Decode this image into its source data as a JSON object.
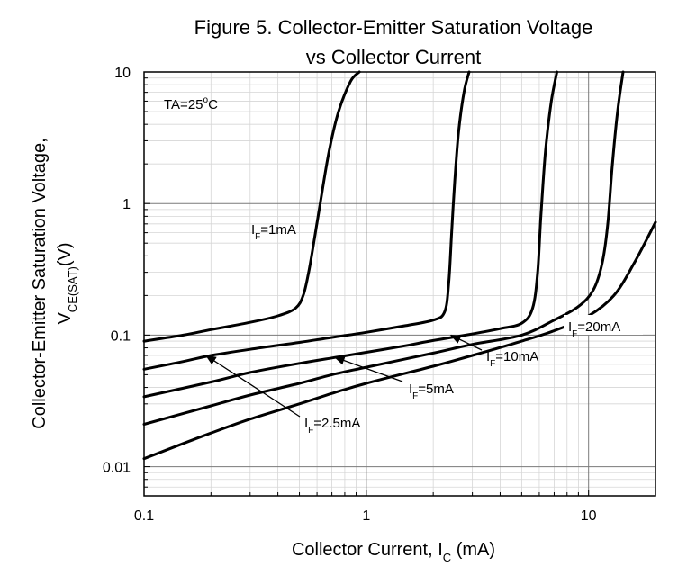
{
  "chart_data": {
    "type": "line",
    "title_line1": "Figure 5. Collector-Emitter Saturation Voltage",
    "title_line2": "vs Collector Current",
    "xlabel": {
      "main": "Collector Current, I",
      "sub": "C",
      "tail": " (mA)"
    },
    "ylabel": {
      "line1": "Collector-Emitter Saturation Voltage,",
      "line2_main": "V",
      "line2_sub": "CE(SAT)",
      "line2_tail": "(V)"
    },
    "x_scale": "log",
    "y_scale": "log",
    "xlim": [
      0.1,
      20
    ],
    "ylim": [
      0.006,
      10
    ],
    "x_ticks": [
      {
        "value": 0.1,
        "label": "0.1"
      },
      {
        "value": 1,
        "label": "1"
      },
      {
        "value": 10,
        "label": "10"
      }
    ],
    "y_ticks": [
      {
        "value": 0.01,
        "label": "0.01"
      },
      {
        "value": 0.1,
        "label": "0.1"
      },
      {
        "value": 1,
        "label": "1"
      },
      {
        "value": 10,
        "label": "10"
      }
    ],
    "grid": true,
    "condition_label": {
      "main": "TA=25",
      "sup": "o",
      "tail": "C"
    },
    "series": [
      {
        "name": "IF=1mA",
        "points": [
          [
            0.1,
            0.09
          ],
          [
            0.15,
            0.1
          ],
          [
            0.2,
            0.11
          ],
          [
            0.3,
            0.125
          ],
          [
            0.4,
            0.14
          ],
          [
            0.48,
            0.16
          ],
          [
            0.52,
            0.2
          ],
          [
            0.55,
            0.3
          ],
          [
            0.58,
            0.5
          ],
          [
            0.62,
            1.0
          ],
          [
            0.68,
            2.5
          ],
          [
            0.75,
            5
          ],
          [
            0.85,
            8.5
          ],
          [
            0.93,
            10
          ]
        ]
      },
      {
        "name": "IF=2.5mA",
        "points": [
          [
            0.1,
            0.055
          ],
          [
            0.15,
            0.063
          ],
          [
            0.2,
            0.07
          ],
          [
            0.3,
            0.078
          ],
          [
            0.5,
            0.088
          ],
          [
            0.7,
            0.096
          ],
          [
            1,
            0.105
          ],
          [
            1.5,
            0.118
          ],
          [
            2,
            0.13
          ],
          [
            2.25,
            0.15
          ],
          [
            2.35,
            0.25
          ],
          [
            2.42,
            0.6
          ],
          [
            2.5,
            1.5
          ],
          [
            2.6,
            3.5
          ],
          [
            2.75,
            7
          ],
          [
            2.9,
            10
          ]
        ]
      },
      {
        "name": "IF=5mA",
        "points": [
          [
            0.1,
            0.034
          ],
          [
            0.2,
            0.044
          ],
          [
            0.3,
            0.052
          ],
          [
            0.5,
            0.061
          ],
          [
            0.7,
            0.067
          ],
          [
            1,
            0.074
          ],
          [
            1.5,
            0.083
          ],
          [
            2,
            0.091
          ],
          [
            3,
            0.102
          ],
          [
            4,
            0.112
          ],
          [
            5,
            0.123
          ],
          [
            5.6,
            0.16
          ],
          [
            5.9,
            0.3
          ],
          [
            6.1,
            0.8
          ],
          [
            6.4,
            2.5
          ],
          [
            6.8,
            6
          ],
          [
            7.2,
            10
          ]
        ]
      },
      {
        "name": "IF=10mA",
        "points": [
          [
            0.1,
            0.021
          ],
          [
            0.2,
            0.029
          ],
          [
            0.3,
            0.035
          ],
          [
            0.5,
            0.043
          ],
          [
            0.7,
            0.05
          ],
          [
            1,
            0.057
          ],
          [
            2,
            0.073
          ],
          [
            3,
            0.085
          ],
          [
            5,
            0.1
          ],
          [
            7,
            0.13
          ],
          [
            9,
            0.165
          ],
          [
            10.5,
            0.22
          ],
          [
            11.5,
            0.35
          ],
          [
            12.2,
            0.7
          ],
          [
            12.8,
            2
          ],
          [
            13.5,
            5
          ],
          [
            14.3,
            10
          ]
        ]
      },
      {
        "name": "IF=20mA",
        "points": [
          [
            0.1,
            0.0115
          ],
          [
            0.15,
            0.015
          ],
          [
            0.2,
            0.018
          ],
          [
            0.3,
            0.023
          ],
          [
            0.5,
            0.03
          ],
          [
            0.7,
            0.036
          ],
          [
            1,
            0.043
          ],
          [
            2,
            0.058
          ],
          [
            3,
            0.07
          ],
          [
            5,
            0.09
          ],
          [
            7,
            0.108
          ],
          [
            10,
            0.14
          ],
          [
            13,
            0.2
          ],
          [
            16,
            0.35
          ],
          [
            20,
            0.72
          ]
        ]
      }
    ],
    "annotations": [
      {
        "main": "I",
        "sub": "F",
        "tail": "=1mA"
      },
      {
        "main": "I",
        "sub": "F",
        "tail": "=2.5mA"
      },
      {
        "main": "I",
        "sub": "F",
        "tail": "=5mA"
      },
      {
        "main": "I",
        "sub": "F",
        "tail": "=10mA"
      },
      {
        "main": "I",
        "sub": "F",
        "tail": "=20mA"
      }
    ],
    "arrow_targets": [
      {
        "x": 0.19,
        "y": 0.07
      },
      {
        "x": 0.72,
        "y": 0.068
      },
      {
        "x": 2.4,
        "y": 0.1
      }
    ]
  }
}
